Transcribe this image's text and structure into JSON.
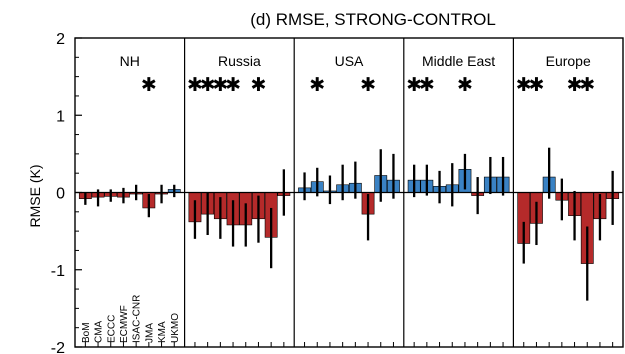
{
  "chart_data": {
    "type": "bar",
    "title": "(d) RMSE, STRONG-CONTROL",
    "ylabel": "RMSE (K)",
    "ylim": [
      -2,
      2
    ],
    "yticks": [
      2,
      1,
      0,
      -1,
      -2
    ],
    "models": [
      "BoM",
      "CMA",
      "ECCC",
      "ECMWF",
      "ISAC-CNR",
      "JMA",
      "KMA",
      "UKMO"
    ],
    "colors": {
      "positive": "#3a82c4",
      "negative": "#b52a2a",
      "axis": "#000000"
    },
    "panels": [
      {
        "name": "NH",
        "values": [
          -0.08,
          -0.06,
          -0.05,
          -0.06,
          -0.02,
          -0.2,
          -0.02,
          0.04
        ],
        "err_low": [
          -0.16,
          -0.18,
          -0.12,
          -0.14,
          -0.1,
          -0.32,
          -0.14,
          -0.06
        ],
        "err_high": [
          0.0,
          0.04,
          0.04,
          0.06,
          0.1,
          -0.02,
          0.1,
          0.1
        ],
        "stars": [
          "JMA"
        ]
      },
      {
        "name": "Russia",
        "values": [
          -0.38,
          -0.28,
          -0.34,
          -0.42,
          -0.42,
          -0.34,
          -0.58,
          -0.04
        ],
        "err_low": [
          -0.6,
          -0.55,
          -0.6,
          -0.7,
          -0.7,
          -0.65,
          -0.98,
          -0.3
        ],
        "err_high": [
          -0.1,
          0.0,
          -0.06,
          -0.1,
          -0.14,
          -0.04,
          -0.2,
          0.3
        ],
        "stars": [
          "BoM",
          "CMA",
          "ECCC",
          "ECMWF",
          "JMA"
        ]
      },
      {
        "name": "USA",
        "values": [
          0.06,
          0.14,
          0.02,
          0.1,
          0.12,
          -0.28,
          0.22,
          0.16
        ],
        "err_low": [
          -0.1,
          -0.05,
          -0.15,
          -0.1,
          -0.08,
          -0.62,
          -0.12,
          -0.08
        ],
        "err_high": [
          0.26,
          0.32,
          0.22,
          0.36,
          0.4,
          -0.02,
          0.56,
          0.5
        ],
        "stars": [
          "CMA",
          "JMA"
        ]
      },
      {
        "name": "Middle East",
        "values": [
          0.16,
          0.16,
          0.08,
          0.1,
          0.3,
          -0.04,
          0.2,
          0.2
        ],
        "err_low": [
          -0.06,
          -0.04,
          -0.14,
          -0.18,
          0.04,
          -0.28,
          -0.02,
          -0.04
        ],
        "err_high": [
          0.36,
          0.36,
          0.28,
          0.38,
          0.5,
          0.2,
          0.46,
          0.46
        ],
        "stars": [
          "BoM",
          "CMA",
          "ISAC-CNR"
        ]
      },
      {
        "name": "Europe",
        "values": [
          -0.66,
          -0.4,
          0.2,
          -0.1,
          -0.3,
          -0.92,
          -0.34,
          -0.08
        ],
        "err_low": [
          -0.92,
          -0.68,
          -0.08,
          -0.36,
          -0.62,
          -1.4,
          -0.62,
          -0.42
        ],
        "err_high": [
          -0.38,
          -0.12,
          0.58,
          0.18,
          0.02,
          -0.44,
          -0.02,
          0.28
        ],
        "stars": [
          "BoM",
          "CMA",
          "ISAC-CNR",
          "JMA"
        ]
      }
    ]
  }
}
